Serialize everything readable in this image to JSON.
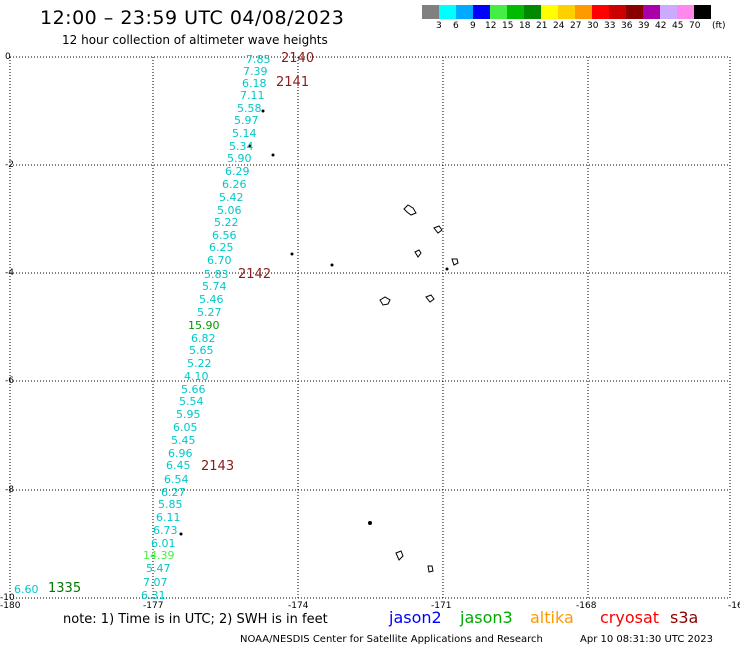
{
  "header": {
    "title": "12:00 – 23:59 UTC 04/08/2023",
    "subtitle": "12 hour collection of altimeter wave heights"
  },
  "colorbar": {
    "colors": [
      "#808080",
      "#00ffff",
      "#00aaff",
      "#0000ff",
      "#44ee44",
      "#00bb00",
      "#008800",
      "#ffff00",
      "#ffd000",
      "#ff9900",
      "#ff0000",
      "#cc0000",
      "#880000",
      "#aa00aa",
      "#ccaaff",
      "#ff88ee",
      "#000000"
    ],
    "labels": [
      "3",
      "6",
      "9",
      "12",
      "15",
      "18",
      "21",
      "24",
      "27",
      "30",
      "33",
      "36",
      "39",
      "42",
      "45",
      "70"
    ],
    "unit": "(ft)"
  },
  "axes": {
    "x_ticks": [
      "-180",
      "-177",
      "-174",
      "-171",
      "-168",
      "-16"
    ],
    "y_ticks": [
      "0",
      "-2",
      "-4",
      "-6",
      "-8",
      "-10"
    ]
  },
  "measurements": [
    {
      "v": "7.85",
      "c": "#00c8c8"
    },
    {
      "v": "7.39",
      "c": "#00c8c8"
    },
    {
      "v": "6.18",
      "c": "#00c8c8"
    },
    {
      "v": "7.11",
      "c": "#00c8c8"
    },
    {
      "v": "5.58",
      "c": "#00c8c8"
    },
    {
      "v": "5.97",
      "c": "#00c8c8"
    },
    {
      "v": "5.14",
      "c": "#00c8c8"
    },
    {
      "v": "5.34",
      "c": "#00c8c8"
    },
    {
      "v": "5.90",
      "c": "#00c8c8"
    },
    {
      "v": "6.29",
      "c": "#00c8c8"
    },
    {
      "v": "6.26",
      "c": "#00c8c8"
    },
    {
      "v": "5.42",
      "c": "#00c8c8"
    },
    {
      "v": "5.06",
      "c": "#00c8c8"
    },
    {
      "v": "5.22",
      "c": "#00c8c8"
    },
    {
      "v": "6.56",
      "c": "#00c8c8"
    },
    {
      "v": "6.25",
      "c": "#00c8c8"
    },
    {
      "v": "6.70",
      "c": "#00c8c8"
    },
    {
      "v": "5.83",
      "c": "#00c8c8"
    },
    {
      "v": "5.74",
      "c": "#00c8c8"
    },
    {
      "v": "5.46",
      "c": "#00c8c8"
    },
    {
      "v": "5.27",
      "c": "#00c8c8"
    },
    {
      "v": "15.90",
      "c": "#009900"
    },
    {
      "v": "6.82",
      "c": "#00c8c8"
    },
    {
      "v": "5.65",
      "c": "#00c8c8"
    },
    {
      "v": "5.22",
      "c": "#00c8c8"
    },
    {
      "v": "4.10",
      "c": "#00c8c8"
    },
    {
      "v": "5.66",
      "c": "#00c8c8"
    },
    {
      "v": "5.54",
      "c": "#00c8c8"
    },
    {
      "v": "5.95",
      "c": "#00c8c8"
    },
    {
      "v": "6.05",
      "c": "#00c8c8"
    },
    {
      "v": "5.45",
      "c": "#00c8c8"
    },
    {
      "v": "6.96",
      "c": "#00c8c8"
    },
    {
      "v": "6.45",
      "c": "#00c8c8"
    },
    {
      "v": "6.54",
      "c": "#00c8c8"
    },
    {
      "v": "6.27",
      "c": "#00c8c8"
    },
    {
      "v": "5.85",
      "c": "#00c8c8"
    },
    {
      "v": "6.11",
      "c": "#00c8c8"
    },
    {
      "v": "6.73",
      "c": "#00c8c8"
    },
    {
      "v": "6.01",
      "c": "#00c8c8"
    },
    {
      "v": "14.39",
      "c": "#44ee44"
    },
    {
      "v": "5.47",
      "c": "#00c8c8"
    },
    {
      "v": "7.07",
      "c": "#00c8c8"
    },
    {
      "v": "6.31",
      "c": "#00c8c8"
    },
    {
      "v": "6.60",
      "c": "#00c8c8"
    }
  ],
  "hour_labels": [
    {
      "v": "2140",
      "c": "#8b1a1a"
    },
    {
      "v": "2141",
      "c": "#8b1a1a"
    },
    {
      "v": "2142",
      "c": "#8b1a1a"
    },
    {
      "v": "2143",
      "c": "#8b1a1a"
    },
    {
      "v": "1335",
      "c": "#007700"
    }
  ],
  "note": "note:  1) Time is in UTC; 2) SWH is in feet",
  "satellites": [
    {
      "name": "jason2",
      "color": "#0000ff"
    },
    {
      "name": "jason3",
      "color": "#00aa00"
    },
    {
      "name": "altika",
      "color": "#ff9900"
    },
    {
      "name": "cryosat",
      "color": "#ff0000"
    },
    {
      "name": "s3a",
      "color": "#8b0000"
    }
  ],
  "footer": {
    "credit": "NOAA/NESDIS Center for Satellite Applications and Research",
    "timestamp": "Apr 10 08:31:30 UTC 2023"
  }
}
